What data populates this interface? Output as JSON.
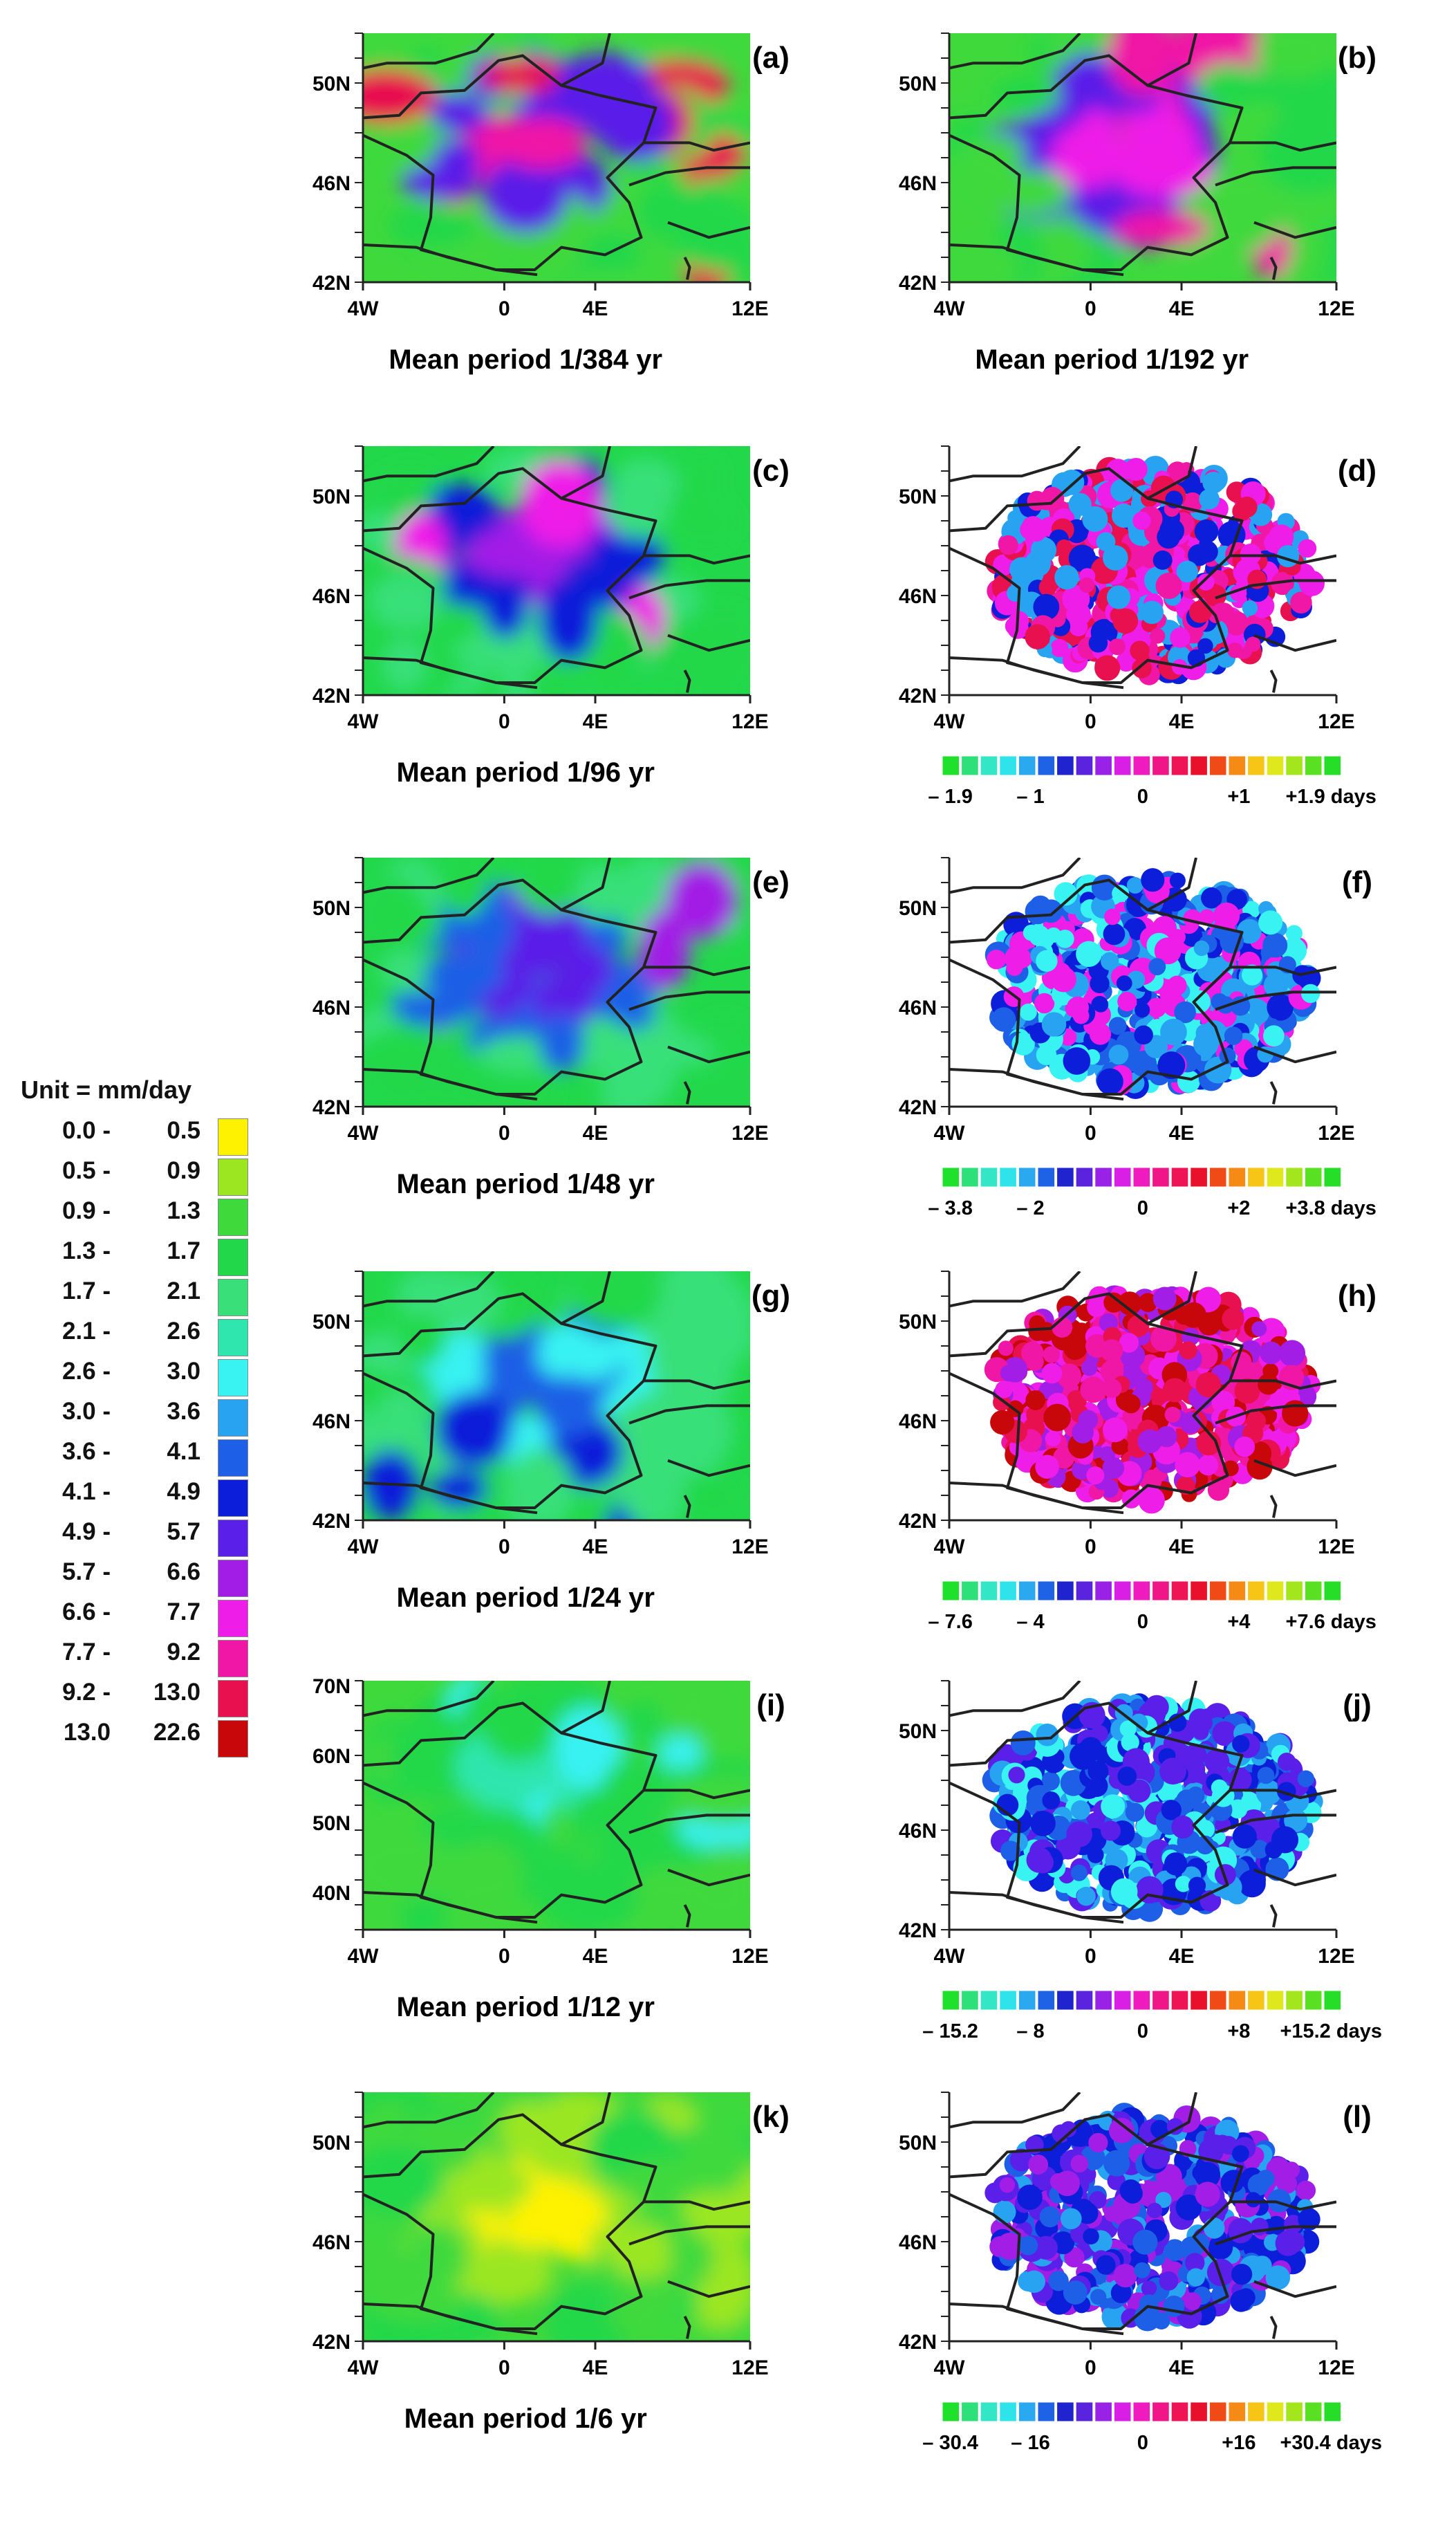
{
  "mm_colors": [
    "#fff200",
    "#9be620",
    "#3fd93c",
    "#22d84a",
    "#39e07a",
    "#2ee6ae",
    "#39f2f2",
    "#27a3f2",
    "#1d5fe6",
    "#0c1ed9",
    "#5a1fe8",
    "#a21ee6",
    "#ef1de8",
    "#f016a6",
    "#e8104f",
    "#c8070b"
  ],
  "anom_colors": [
    "#1fe02a",
    "#2de07a",
    "#33e6c6",
    "#2ee3ea",
    "#2aa8f0",
    "#1e62e6",
    "#1f24cf",
    "#5a23de",
    "#9a22e6",
    "#d91fe6",
    "#f01bbf",
    "#f01688",
    "#ee1455",
    "#e8102a",
    "#f04a16",
    "#f58a15",
    "#f7c516",
    "#dfe81d",
    "#a3e61e",
    "#5ae022",
    "#26de28"
  ],
  "axes": {
    "lon_ticks": [
      "4W",
      "0",
      "4E",
      "12E"
    ],
    "lat_ticks": [
      "42N",
      "46N",
      "50N"
    ],
    "lat_ticks_alt": [
      "40N",
      "50N",
      "60N",
      "70N"
    ]
  },
  "legend": {
    "title": "Unit = mm/day",
    "rows": [
      {
        "lo": "0.0 -",
        "hi": "0.5"
      },
      {
        "lo": "0.5 -",
        "hi": "0.9"
      },
      {
        "lo": "0.9 -",
        "hi": "1.3"
      },
      {
        "lo": "1.3 -",
        "hi": "1.7"
      },
      {
        "lo": "1.7 -",
        "hi": "2.1"
      },
      {
        "lo": "2.1 -",
        "hi": "2.6"
      },
      {
        "lo": "2.6 -",
        "hi": "3.0"
      },
      {
        "lo": "3.0 -",
        "hi": "3.6"
      },
      {
        "lo": "3.6 -",
        "hi": "4.1"
      },
      {
        "lo": "4.1 -",
        "hi": "4.9"
      },
      {
        "lo": "4.9 -",
        "hi": "5.7"
      },
      {
        "lo": "5.7 -",
        "hi": "6.6"
      },
      {
        "lo": "6.6 -",
        "hi": "7.7"
      },
      {
        "lo": "7.7 -",
        "hi": "9.2"
      },
      {
        "lo": "9.2 -",
        "hi": "13.0"
      },
      {
        "lo": "13.0",
        "hi": "22.6"
      }
    ]
  },
  "panels": [
    {
      "id": "a",
      "label": "(a)",
      "kind": "period",
      "caption": "Mean period  1/384 yr"
    },
    {
      "id": "b",
      "label": "(b)",
      "kind": "period",
      "caption": "Mean period  1/192 yr"
    },
    {
      "id": "c",
      "label": "(c)",
      "kind": "period",
      "caption": "Mean period  1/96 yr"
    },
    {
      "id": "d",
      "label": "(d)",
      "kind": "anomaly",
      "scale": [
        "– 1.9",
        "– 1",
        "0",
        "+1",
        "+1.9 days"
      ]
    },
    {
      "id": "e",
      "label": "(e)",
      "kind": "period",
      "caption": "Mean period  1/48 yr"
    },
    {
      "id": "f",
      "label": "(f)",
      "kind": "anomaly",
      "scale": [
        "– 3.8",
        "– 2",
        "0",
        "+2",
        "+3.8 days"
      ]
    },
    {
      "id": "g",
      "label": "(g)",
      "kind": "period",
      "caption": "Mean period  1/24 yr"
    },
    {
      "id": "h",
      "label": "(h)",
      "kind": "anomaly",
      "scale": [
        "– 7.6",
        "– 4",
        "0",
        "+4",
        "+7.6 days"
      ]
    },
    {
      "id": "i",
      "label": "(i)",
      "kind": "period",
      "caption": "Mean period  1/12 yr",
      "alt_lat": true
    },
    {
      "id": "j",
      "label": "(j)",
      "kind": "anomaly",
      "scale": [
        "– 15.2",
        "– 8",
        "0",
        "+8",
        "+15.2 days"
      ]
    },
    {
      "id": "k",
      "label": "(k)",
      "kind": "period",
      "caption": "Mean period  1/6 yr"
    },
    {
      "id": "l",
      "label": "(l)",
      "kind": "anomaly",
      "scale": [
        "– 30.4",
        "– 16",
        "0",
        "+16",
        "+30.4 days"
      ]
    }
  ]
}
